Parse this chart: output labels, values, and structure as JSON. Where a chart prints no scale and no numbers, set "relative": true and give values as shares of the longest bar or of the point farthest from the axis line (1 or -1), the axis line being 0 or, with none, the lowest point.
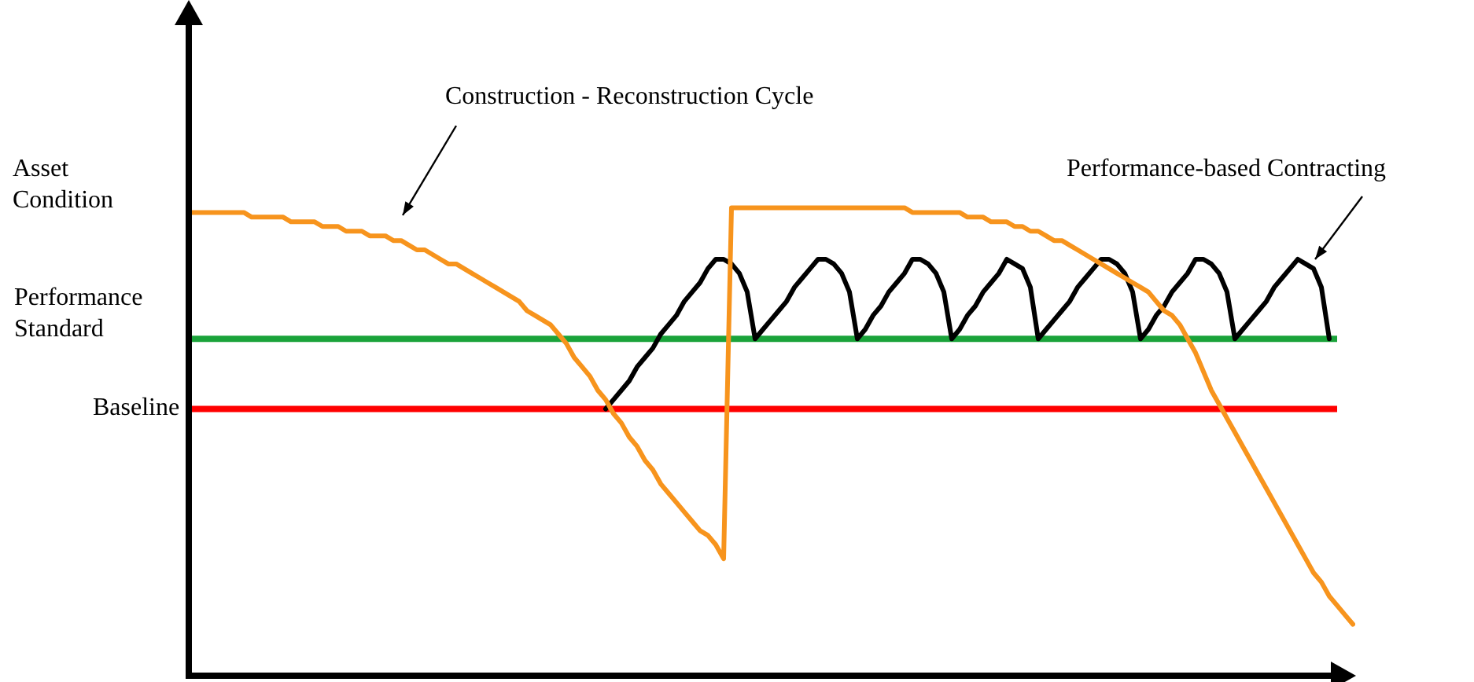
{
  "chart_data": {
    "type": "line",
    "relative": true,
    "legend": false,
    "marker": "none",
    "line_style": "solid",
    "ylabel": "Asset Condition",
    "annotations": [
      "Construction - Reconstruction Cycle",
      "Performance-based Contracting"
    ],
    "categories": [
      null,
      null,
      null,
      null,
      null,
      null,
      null,
      null,
      null,
      null,
      null,
      null,
      null,
      null,
      null,
      null,
      null,
      null,
      null,
      null,
      null,
      null,
      null,
      null,
      null,
      null,
      null,
      null,
      null,
      null,
      null,
      null,
      null,
      null,
      null,
      null,
      null,
      null,
      null,
      null,
      null,
      null,
      null,
      null,
      null,
      null,
      null,
      null,
      null,
      null,
      null,
      null,
      null,
      null,
      null,
      null,
      null,
      null,
      null,
      null,
      null,
      null,
      null,
      null,
      null,
      null,
      null,
      null,
      null,
      null,
      null,
      null,
      null,
      null,
      null,
      null,
      null,
      null,
      null,
      null,
      null,
      null,
      null,
      null,
      null,
      null,
      null,
      null,
      null,
      null,
      null,
      null,
      null,
      null,
      null,
      null,
      null,
      null,
      null,
      null,
      null,
      null,
      null,
      null,
      null,
      null,
      null,
      null,
      null,
      null,
      null,
      null,
      null,
      null,
      null,
      null,
      null,
      null,
      null,
      null,
      null,
      null,
      null,
      null,
      null,
      null,
      null,
      null,
      null,
      null,
      null,
      null,
      null,
      null,
      null,
      null,
      null,
      null,
      null,
      null,
      null,
      null,
      null,
      null,
      null,
      null,
      null,
      null,
      null
    ],
    "series": [
      {
        "color": "#f7941d",
        "values": [
          0.99,
          0.99,
          0.99,
          0.99,
          0.99,
          0.99,
          0.99,
          0.99,
          0.98,
          0.98,
          0.98,
          0.98,
          0.98,
          0.97,
          0.97,
          0.97,
          0.97,
          0.96,
          0.96,
          0.96,
          0.95,
          0.95,
          0.95,
          0.94,
          0.94,
          0.94,
          0.93,
          0.93,
          0.92,
          0.91,
          0.91,
          0.9,
          0.89,
          0.88,
          0.88,
          0.87,
          0.86,
          0.85,
          0.84,
          0.83,
          0.82,
          0.81,
          0.8,
          0.78,
          0.77,
          0.76,
          0.75,
          0.73,
          0.71,
          0.68,
          0.66,
          0.64,
          0.61,
          0.59,
          0.56,
          0.54,
          0.51,
          0.49,
          0.46,
          0.44,
          0.41,
          0.39,
          0.37,
          0.35,
          0.33,
          0.31,
          0.3,
          0.28,
          0.25,
          1,
          1,
          1,
          1,
          1,
          1,
          1,
          1,
          1,
          1,
          1,
          1,
          1,
          1,
          1,
          1,
          1,
          1,
          1,
          1,
          1,
          1,
          1,
          0.99,
          0.99,
          0.99,
          0.99,
          0.99,
          0.99,
          0.99,
          0.98,
          0.98,
          0.98,
          0.97,
          0.97,
          0.97,
          0.96,
          0.96,
          0.95,
          0.95,
          0.94,
          0.93,
          0.93,
          0.92,
          0.91,
          0.9,
          0.89,
          0.88,
          0.87,
          0.86,
          0.85,
          0.84,
          0.83,
          0.82,
          0.8,
          0.78,
          0.77,
          0.75,
          0.72,
          0.69,
          0.65,
          0.61,
          0.58,
          0.55,
          0.52,
          0.49,
          0.46,
          0.43,
          0.4,
          0.37,
          0.34,
          0.31,
          0.28,
          0.25,
          0.22,
          0.2,
          0.17,
          0.15,
          0.13,
          0.11
        ]
      },
      {
        "color": "#000000",
        "values": [
          null,
          null,
          null,
          null,
          null,
          null,
          null,
          null,
          null,
          null,
          null,
          null,
          null,
          null,
          null,
          null,
          null,
          null,
          null,
          null,
          null,
          null,
          null,
          null,
          null,
          null,
          null,
          null,
          null,
          null,
          null,
          null,
          null,
          null,
          null,
          null,
          null,
          null,
          null,
          null,
          null,
          null,
          null,
          null,
          null,
          null,
          null,
          null,
          null,
          null,
          null,
          null,
          null,
          0.57,
          0.59,
          0.61,
          0.63,
          0.66,
          0.68,
          0.7,
          0.73,
          0.75,
          0.77,
          0.8,
          0.82,
          0.84,
          0.87,
          0.89,
          0.89,
          0.88,
          0.86,
          0.82,
          0.72,
          0.74,
          0.76,
          0.78,
          0.8,
          0.83,
          0.85,
          0.87,
          0.89,
          0.89,
          0.88,
          0.86,
          0.82,
          0.72,
          0.74,
          0.77,
          0.79,
          0.82,
          0.84,
          0.86,
          0.89,
          0.89,
          0.88,
          0.86,
          0.82,
          0.72,
          0.74,
          0.77,
          0.79,
          0.82,
          0.84,
          0.86,
          0.89,
          0.88,
          0.87,
          0.83,
          0.72,
          0.74,
          0.76,
          0.78,
          0.8,
          0.83,
          0.85,
          0.87,
          0.89,
          0.89,
          0.88,
          0.86,
          0.82,
          0.72,
          0.74,
          0.77,
          0.79,
          0.82,
          0.84,
          0.86,
          0.89,
          0.89,
          0.88,
          0.86,
          0.82,
          0.72,
          0.74,
          0.76,
          0.78,
          0.8,
          0.83,
          0.85,
          0.87,
          0.89,
          0.88,
          0.87,
          0.83,
          0.72,
          null,
          null,
          null
        ]
      }
    ],
    "ref_lines": [
      {
        "axis": "y",
        "value": 0.72,
        "label": "Performance Standard",
        "color": "#1aa33a"
      },
      {
        "axis": "y",
        "value": 0.57,
        "label": "Baseline",
        "color": "#ff0000"
      }
    ]
  }
}
